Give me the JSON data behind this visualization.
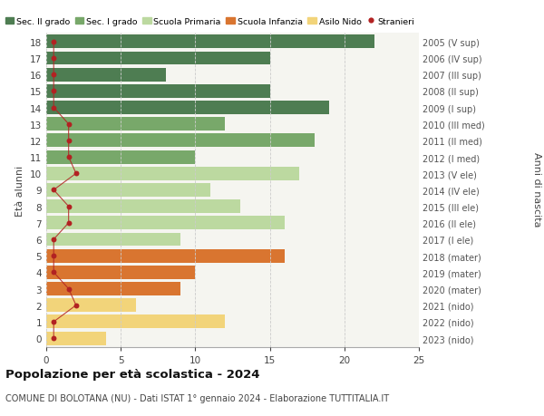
{
  "ages": [
    18,
    17,
    16,
    15,
    14,
    13,
    12,
    11,
    10,
    9,
    8,
    7,
    6,
    5,
    4,
    3,
    2,
    1,
    0
  ],
  "right_labels": [
    "2005 (V sup)",
    "2006 (IV sup)",
    "2007 (III sup)",
    "2008 (II sup)",
    "2009 (I sup)",
    "2010 (III med)",
    "2011 (II med)",
    "2012 (I med)",
    "2013 (V ele)",
    "2014 (IV ele)",
    "2015 (III ele)",
    "2016 (II ele)",
    "2017 (I ele)",
    "2018 (mater)",
    "2019 (mater)",
    "2020 (mater)",
    "2021 (nido)",
    "2022 (nido)",
    "2023 (nido)"
  ],
  "bar_values": [
    22,
    15,
    8,
    15,
    19,
    12,
    18,
    10,
    17,
    11,
    13,
    16,
    9,
    16,
    10,
    9,
    6,
    12,
    4
  ],
  "bar_colors": [
    "#4e7d52",
    "#4e7d52",
    "#4e7d52",
    "#4e7d52",
    "#4e7d52",
    "#78a86a",
    "#78a86a",
    "#78a86a",
    "#bcd9a0",
    "#bcd9a0",
    "#bcd9a0",
    "#bcd9a0",
    "#bcd9a0",
    "#d97530",
    "#d97530",
    "#d97530",
    "#f2d47a",
    "#f2d47a",
    "#f2d47a"
  ],
  "stranieri_x": [
    0.5,
    0.5,
    0.5,
    0.5,
    0.5,
    1.5,
    1.5,
    1.5,
    2.0,
    0.5,
    1.5,
    1.5,
    0.5,
    0.5,
    0.5,
    1.5,
    2.0,
    0.5,
    0.5
  ],
  "legend_labels": [
    "Sec. II grado",
    "Sec. I grado",
    "Scuola Primaria",
    "Scuola Infanzia",
    "Asilo Nido",
    "Stranieri"
  ],
  "legend_colors": [
    "#4e7d52",
    "#78a86a",
    "#bcd9a0",
    "#d97530",
    "#f2d47a",
    "#b22222"
  ],
  "title": "Popolazione per età scolastica - 2024",
  "subtitle": "COMUNE DI BOLOTANA (NU) - Dati ISTAT 1° gennaio 2024 - Elaborazione TUTTITALIA.IT",
  "ylabel_left": "Età alunni",
  "ylabel_right": "Anni di nascita",
  "xlim": [
    0,
    25
  ],
  "xticks": [
    0,
    5,
    10,
    15,
    20,
    25
  ],
  "bg_color": "#ffffff",
  "plot_bg_color": "#f5f5f0",
  "grid_color": "#cccccc",
  "bar_height": 0.82
}
